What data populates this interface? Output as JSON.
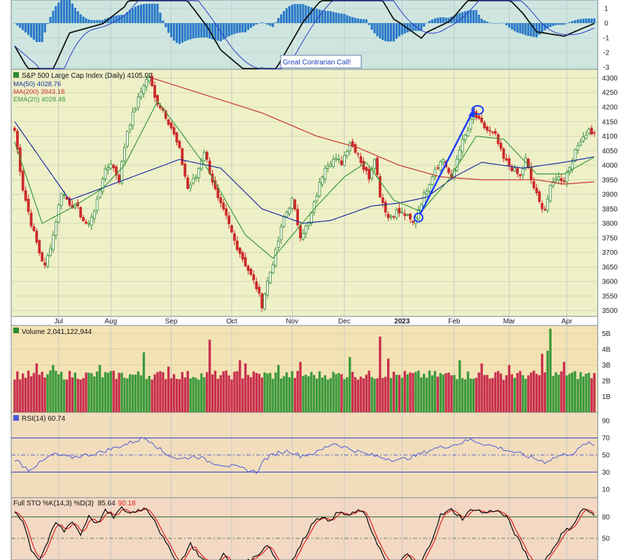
{
  "chart_data": {
    "type": "candlestick",
    "colors": {
      "up": "#2f8a2f",
      "down": "#cc2a2a",
      "ma50": "#1a2fa0",
      "ma200": "#c8322a",
      "ema20": "#3a9a3a",
      "annotation": "#1a3cff",
      "macd_hist": "#2a7ac8",
      "rsi_line": "#4a5ad8",
      "sto_k": "#111111",
      "sto_d": "#e02020",
      "bg_macd": "#cfe6e0",
      "bg_price": "#eef0c8",
      "bg_volume": "#f3e3b4",
      "bg_rsi": "#f2ddbd",
      "bg_sto": "#f3d8c4"
    },
    "months": [
      "Jul",
      "Aug",
      "Sep",
      "Oct",
      "Nov",
      "Dec",
      "2023",
      "Feb",
      "Mar",
      "Apr"
    ],
    "macd_panel": {
      "y_ticks": [
        "1",
        "0",
        "-1",
        "-2",
        "-3"
      ],
      "annotation": "Great Contrarian Call!"
    },
    "price_panel": {
      "title": "S&P 500 Large Cap Index (Daily) 4105.02",
      "legend": [
        {
          "label": "MA(50) 4028.76",
          "color": "#1a2fa0"
        },
        {
          "label": "MA(200) 3943.18",
          "color": "#c8322a"
        },
        {
          "label": "EMA(20) 4028.48",
          "color": "#3a9a3a"
        }
      ],
      "y_ticks": [
        4300,
        4250,
        4200,
        4150,
        4100,
        4050,
        4000,
        3950,
        3900,
        3850,
        3800,
        3750,
        3700,
        3650,
        3600,
        3550,
        3500
      ],
      "ylim": [
        3480,
        4330
      ],
      "close_anchors": [
        [
          0,
          4120
        ],
        [
          3,
          3920
        ],
        [
          6,
          3800
        ],
        [
          9,
          3700
        ],
        [
          11,
          3650
        ],
        [
          14,
          3760
        ],
        [
          17,
          3910
        ],
        [
          20,
          3870
        ],
        [
          23,
          3850
        ],
        [
          26,
          3790
        ],
        [
          29,
          3840
        ],
        [
          32,
          3960
        ],
        [
          35,
          4010
        ],
        [
          38,
          3950
        ],
        [
          41,
          4120
        ],
        [
          44,
          4200
        ],
        [
          47,
          4280
        ],
        [
          49,
          4305
        ],
        [
          51,
          4230
        ],
        [
          54,
          4190
        ],
        [
          57,
          4130
        ],
        [
          60,
          4050
        ],
        [
          63,
          3920
        ],
        [
          66,
          3960
        ],
        [
          69,
          4050
        ],
        [
          71,
          3980
        ],
        [
          74,
          3880
        ],
        [
          77,
          3820
        ],
        [
          80,
          3740
        ],
        [
          83,
          3680
        ],
        [
          86,
          3620
        ],
        [
          88,
          3580
        ],
        [
          90,
          3520
        ],
        [
          92,
          3600
        ],
        [
          95,
          3700
        ],
        [
          98,
          3820
        ],
        [
          101,
          3880
        ],
        [
          104,
          3760
        ],
        [
          107,
          3800
        ],
        [
          110,
          3900
        ],
        [
          113,
          4000
        ],
        [
          116,
          4020
        ],
        [
          119,
          4010
        ],
        [
          122,
          4080
        ],
        [
          125,
          4040
        ],
        [
          127,
          3990
        ],
        [
          129,
          3960
        ],
        [
          131,
          4030
        ],
        [
          133,
          3900
        ],
        [
          136,
          3820
        ],
        [
          139,
          3840
        ],
        [
          142,
          3830
        ],
        [
          145,
          3800
        ],
        [
          147,
          3850
        ],
        [
          150,
          3920
        ],
        [
          153,
          3990
        ],
        [
          156,
          4020
        ],
        [
          159,
          3950
        ],
        [
          162,
          4060
        ],
        [
          165,
          4120
        ],
        [
          167,
          4180
        ],
        [
          169,
          4150
        ],
        [
          172,
          4120
        ],
        [
          175,
          4100
        ],
        [
          178,
          4020
        ],
        [
          181,
          3990
        ],
        [
          184,
          3960
        ],
        [
          186,
          4020
        ],
        [
          188,
          3950
        ],
        [
          191,
          3870
        ],
        [
          193,
          3850
        ],
        [
          195,
          3920
        ],
        [
          197,
          3960
        ],
        [
          200,
          3950
        ],
        [
          203,
          4020
        ],
        [
          206,
          4090
        ],
        [
          209,
          4120
        ],
        [
          211,
          4105
        ]
      ],
      "ma50_anchors": [
        [
          0,
          4150
        ],
        [
          20,
          3880
        ],
        [
          40,
          3950
        ],
        [
          60,
          4020
        ],
        [
          75,
          3990
        ],
        [
          90,
          3850
        ],
        [
          105,
          3800
        ],
        [
          115,
          3810
        ],
        [
          130,
          3860
        ],
        [
          140,
          3870
        ],
        [
          150,
          3890
        ],
        [
          160,
          3960
        ],
        [
          170,
          4010
        ],
        [
          185,
          3990
        ],
        [
          200,
          4010
        ],
        [
          211,
          4029
        ]
      ],
      "ma200_anchors": [
        [
          50,
          4300
        ],
        [
          70,
          4240
        ],
        [
          90,
          4180
        ],
        [
          110,
          4100
        ],
        [
          125,
          4060
        ],
        [
          140,
          4000
        ],
        [
          155,
          3960
        ],
        [
          170,
          3950
        ],
        [
          190,
          3950
        ],
        [
          200,
          3935
        ],
        [
          211,
          3943
        ]
      ],
      "ema20_anchors": [
        [
          0,
          4080
        ],
        [
          10,
          3800
        ],
        [
          20,
          3850
        ],
        [
          32,
          3920
        ],
        [
          40,
          4000
        ],
        [
          52,
          4220
        ],
        [
          60,
          4120
        ],
        [
          70,
          3990
        ],
        [
          84,
          3760
        ],
        [
          94,
          3680
        ],
        [
          110,
          3860
        ],
        [
          120,
          3960
        ],
        [
          128,
          4010
        ],
        [
          138,
          3880
        ],
        [
          148,
          3840
        ],
        [
          158,
          3950
        ],
        [
          168,
          4100
        ],
        [
          178,
          4090
        ],
        [
          190,
          3970
        ],
        [
          200,
          3970
        ],
        [
          211,
          4028
        ]
      ],
      "trend_arrow": {
        "from": [
          147,
          3820
        ],
        "to": [
          167,
          4190
        ]
      }
    },
    "volume_panel": {
      "title": "Volume 2,041,122,944",
      "y_ticks": [
        "5B",
        "4B",
        "3B",
        "2B",
        "1B"
      ],
      "ylim": [
        0,
        5.5
      ],
      "base_volume": 2.3,
      "spikes": [
        [
          8,
          3.1
        ],
        [
          14,
          3.0
        ],
        [
          31,
          3.0
        ],
        [
          47,
          3.8
        ],
        [
          56,
          2.9
        ],
        [
          71,
          4.6
        ],
        [
          82,
          3.3
        ],
        [
          84,
          3.1
        ],
        [
          96,
          3.0
        ],
        [
          104,
          3.2
        ],
        [
          122,
          3.5
        ],
        [
          133,
          4.8
        ],
        [
          136,
          3.4
        ],
        [
          162,
          3.3
        ],
        [
          170,
          3.1
        ],
        [
          180,
          3.0
        ],
        [
          192,
          3.7
        ],
        [
          194,
          3.9
        ],
        [
          195,
          5.3
        ],
        [
          200,
          3.2
        ]
      ]
    },
    "rsi_panel": {
      "title": "RSI(14) 60.74",
      "y_ticks": [
        90,
        70,
        50,
        30,
        10
      ],
      "ylim": [
        0,
        100
      ],
      "anchors": [
        [
          0,
          45
        ],
        [
          5,
          33
        ],
        [
          9,
          40
        ],
        [
          14,
          51
        ],
        [
          20,
          47
        ],
        [
          30,
          52
        ],
        [
          40,
          62
        ],
        [
          47,
          70
        ],
        [
          50,
          66
        ],
        [
          54,
          53
        ],
        [
          60,
          45
        ],
        [
          66,
          49
        ],
        [
          71,
          42
        ],
        [
          80,
          36
        ],
        [
          88,
          30
        ],
        [
          91,
          45
        ],
        [
          96,
          53
        ],
        [
          100,
          55
        ],
        [
          104,
          49
        ],
        [
          110,
          53
        ],
        [
          116,
          64
        ],
        [
          122,
          57
        ],
        [
          128,
          51
        ],
        [
          134,
          47
        ],
        [
          140,
          44
        ],
        [
          146,
          49
        ],
        [
          152,
          57
        ],
        [
          160,
          62
        ],
        [
          166,
          68
        ],
        [
          172,
          62
        ],
        [
          178,
          57
        ],
        [
          184,
          51
        ],
        [
          188,
          47
        ],
        [
          193,
          42
        ],
        [
          198,
          49
        ],
        [
          204,
          53
        ],
        [
          208,
          64
        ],
        [
          211,
          61
        ]
      ]
    },
    "sto_panel": {
      "title_k": "Full STO %K(14,3) %D(3)",
      "k_value": "85.64",
      "d_value": "90.18",
      "y_ticks": [
        80,
        50
      ],
      "ylim": [
        0,
        100
      ],
      "anchors": [
        [
          0,
          88
        ],
        [
          3,
          75
        ],
        [
          6,
          35
        ],
        [
          9,
          20
        ],
        [
          12,
          45
        ],
        [
          15,
          72
        ],
        [
          18,
          60
        ],
        [
          21,
          75
        ],
        [
          24,
          55
        ],
        [
          27,
          82
        ],
        [
          30,
          70
        ],
        [
          33,
          88
        ],
        [
          36,
          80
        ],
        [
          39,
          92
        ],
        [
          42,
          85
        ],
        [
          45,
          90
        ],
        [
          48,
          92
        ],
        [
          51,
          76
        ],
        [
          54,
          50
        ],
        [
          57,
          30
        ],
        [
          60,
          15
        ],
        [
          64,
          42
        ],
        [
          68,
          22
        ],
        [
          72,
          10
        ],
        [
          76,
          28
        ],
        [
          80,
          5
        ],
        [
          84,
          15
        ],
        [
          88,
          25
        ],
        [
          92,
          42
        ],
        [
          96,
          15
        ],
        [
          99,
          6
        ],
        [
          103,
          32
        ],
        [
          107,
          62
        ],
        [
          110,
          80
        ],
        [
          114,
          75
        ],
        [
          118,
          86
        ],
        [
          122,
          82
        ],
        [
          126,
          90
        ],
        [
          128,
          78
        ],
        [
          131,
          52
        ],
        [
          135,
          18
        ],
        [
          139,
          10
        ],
        [
          143,
          28
        ],
        [
          147,
          8
        ],
        [
          151,
          40
        ],
        [
          155,
          82
        ],
        [
          159,
          90
        ],
        [
          163,
          78
        ],
        [
          167,
          92
        ],
        [
          171,
          85
        ],
        [
          175,
          90
        ],
        [
          179,
          80
        ],
        [
          183,
          50
        ],
        [
          187,
          22
        ],
        [
          191,
          8
        ],
        [
          195,
          30
        ],
        [
          199,
          55
        ],
        [
          203,
          68
        ],
        [
          207,
          92
        ],
        [
          209,
          88
        ],
        [
          211,
          80
        ]
      ]
    }
  }
}
